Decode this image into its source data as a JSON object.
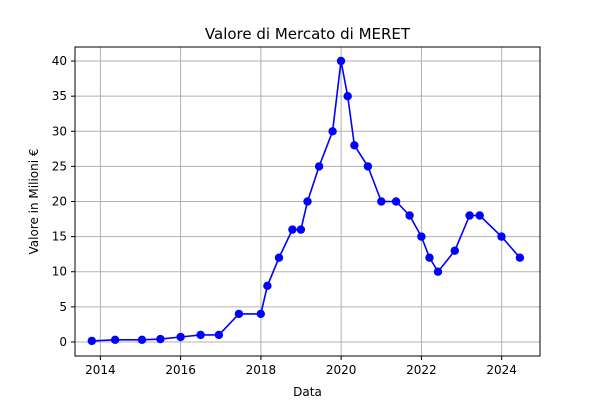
{
  "chart_data": {
    "type": "line",
    "title": "Valore di Mercato di MERET",
    "xlabel": "Data",
    "ylabel": "Valore in Milioni €",
    "x_axis_type": "date",
    "xlim": [
      "2013-05-15",
      "2024-12-15"
    ],
    "ylim": [
      -2,
      42
    ],
    "x_ticks": [
      {
        "date": "2014-01-01",
        "label": "2014"
      },
      {
        "date": "2016-01-01",
        "label": "2016"
      },
      {
        "date": "2018-01-01",
        "label": "2018"
      },
      {
        "date": "2020-01-01",
        "label": "2020"
      },
      {
        "date": "2022-01-01",
        "label": "2022"
      },
      {
        "date": "2024-01-01",
        "label": "2024"
      }
    ],
    "y_ticks": [
      0,
      5,
      10,
      15,
      20,
      25,
      30,
      35,
      40
    ],
    "grid": true,
    "legend": "none",
    "marker": "circle",
    "line_color": "#0000ff",
    "series": [
      {
        "x": [
          "2013-10-15",
          "2014-05-15",
          "2015-01-15",
          "2015-07-01",
          "2016-01-01",
          "2016-07-01",
          "2016-12-15",
          "2017-06-15",
          "2017-12-31",
          "2018-03-01",
          "2018-06-15",
          "2018-10-15",
          "2018-12-31",
          "2019-03-01",
          "2019-06-15",
          "2019-10-15",
          "2019-12-31",
          "2020-03-01",
          "2020-05-01",
          "2020-09-01",
          "2021-01-01",
          "2021-05-15",
          "2021-09-15",
          "2022-01-01",
          "2022-03-15",
          "2022-06-01",
          "2022-11-01",
          "2023-03-15",
          "2023-06-15",
          "2023-12-31",
          "2024-06-15"
        ],
        "values": [
          0.15,
          0.3,
          0.3,
          0.4,
          0.7,
          1,
          1,
          4,
          4,
          8,
          12,
          16,
          16,
          20,
          25,
          30,
          40,
          35,
          28,
          25,
          20,
          20,
          18,
          15,
          12,
          10,
          13,
          18,
          18,
          15,
          12
        ]
      }
    ]
  }
}
